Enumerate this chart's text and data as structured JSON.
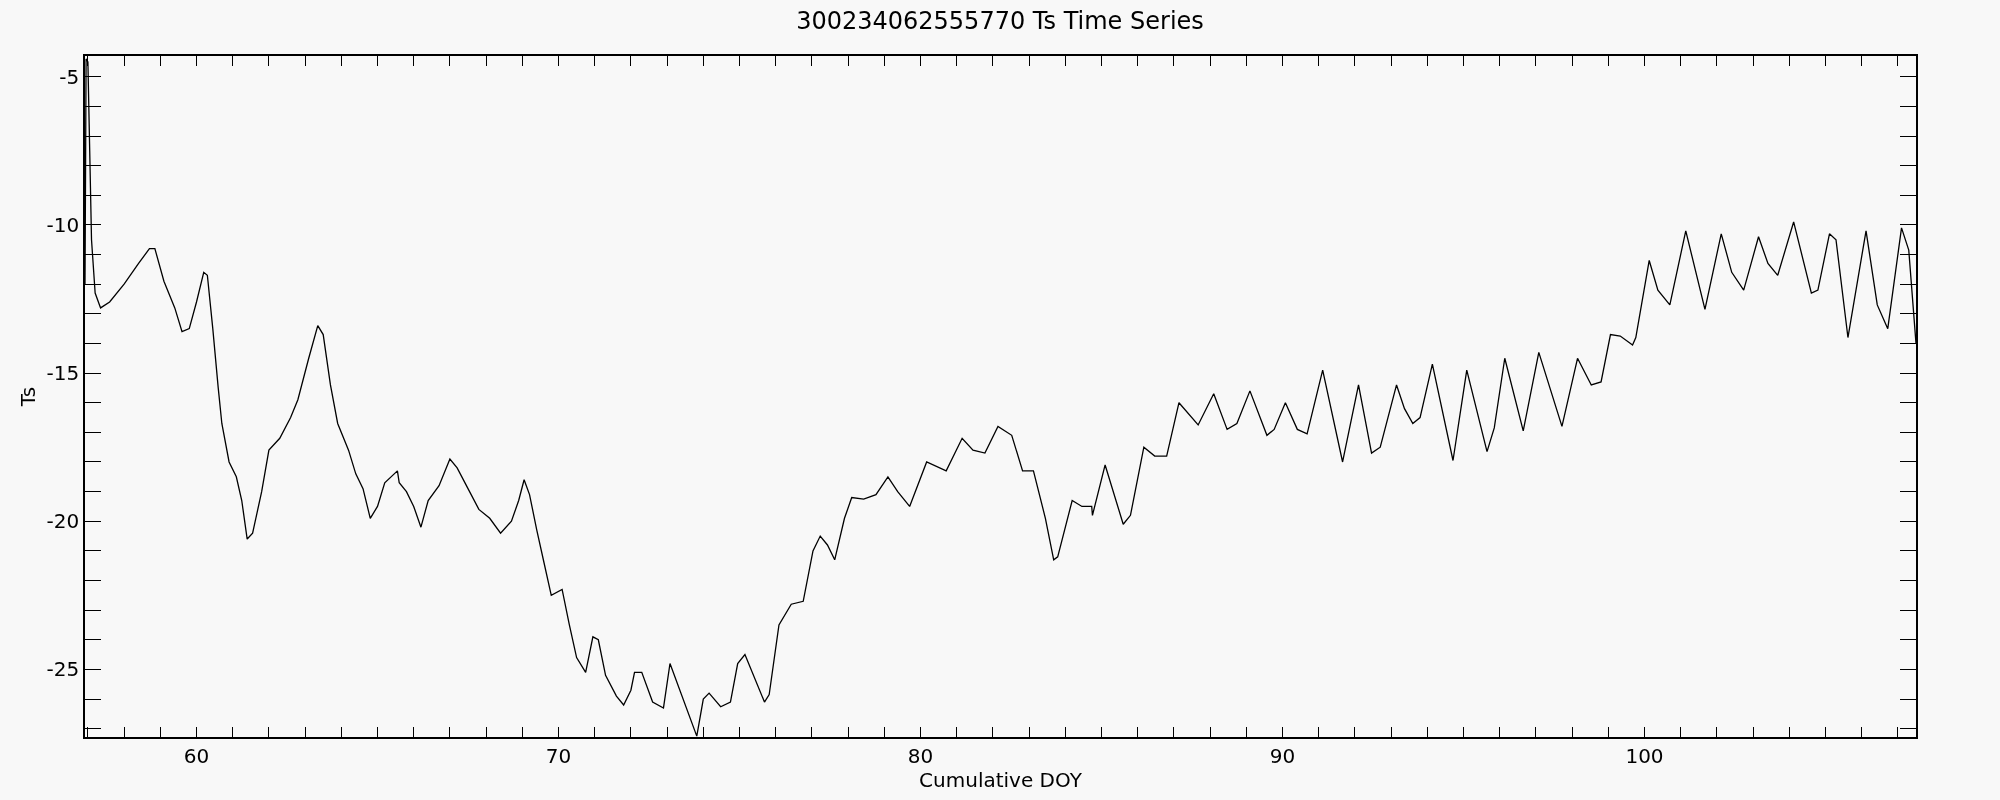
{
  "chart_data": {
    "type": "line",
    "title": "300234062555770 Ts Time Series",
    "xlabel": "Cumulative DOY",
    "ylabel": "Ts",
    "xlim": [
      56.92,
      107.5
    ],
    "ylim": [
      -27.28,
      -4.3
    ],
    "xticks": [
      {
        "value": 57,
        "label": null
      },
      {
        "value": 58,
        "label": null
      },
      {
        "value": 59,
        "label": null
      },
      60,
      {
        "value": 61,
        "label": null
      },
      {
        "value": 62,
        "label": null
      },
      {
        "value": 63,
        "label": null
      },
      {
        "value": 64,
        "label": null
      },
      {
        "value": 65,
        "label": null
      },
      {
        "value": 66,
        "label": null
      },
      {
        "value": 67,
        "label": null
      },
      {
        "value": 68,
        "label": null
      },
      {
        "value": 69,
        "label": null
      },
      70,
      {
        "value": 71,
        "label": null
      },
      {
        "value": 72,
        "label": null
      },
      {
        "value": 73,
        "label": null
      },
      {
        "value": 74,
        "label": null
      },
      {
        "value": 75,
        "label": null
      },
      {
        "value": 76,
        "label": null
      },
      {
        "value": 77,
        "label": null
      },
      {
        "value": 78,
        "label": null
      },
      {
        "value": 79,
        "label": null
      },
      80,
      {
        "value": 81,
        "label": null
      },
      {
        "value": 82,
        "label": null
      },
      {
        "value": 83,
        "label": null
      },
      {
        "value": 84,
        "label": null
      },
      {
        "value": 85,
        "label": null
      },
      {
        "value": 86,
        "label": null
      },
      {
        "value": 87,
        "label": null
      },
      {
        "value": 88,
        "label": null
      },
      {
        "value": 89,
        "label": null
      },
      90,
      {
        "value": 91,
        "label": null
      },
      {
        "value": 92,
        "label": null
      },
      {
        "value": 93,
        "label": null
      },
      {
        "value": 94,
        "label": null
      },
      {
        "value": 95,
        "label": null
      },
      {
        "value": 96,
        "label": null
      },
      {
        "value": 97,
        "label": null
      },
      {
        "value": 98,
        "label": null
      },
      {
        "value": 99,
        "label": null
      },
      100,
      {
        "value": 101,
        "label": null
      },
      {
        "value": 102,
        "label": null
      },
      {
        "value": 103,
        "label": null
      },
      {
        "value": 104,
        "label": null
      },
      {
        "value": 105,
        "label": null
      },
      {
        "value": 106,
        "label": null
      },
      {
        "value": 107,
        "label": null
      }
    ],
    "yticks": [
      {
        "value": -27,
        "label": null
      },
      {
        "value": -26,
        "label": null
      },
      -25,
      {
        "value": -24,
        "label": null
      },
      {
        "value": -23,
        "label": null
      },
      {
        "value": -22,
        "label": null
      },
      {
        "value": -21,
        "label": null
      },
      -20,
      {
        "value": -19,
        "label": null
      },
      {
        "value": -18,
        "label": null
      },
      {
        "value": -17,
        "label": null
      },
      {
        "value": -16,
        "label": null
      },
      -15,
      {
        "value": -14,
        "label": null
      },
      {
        "value": -13,
        "label": null
      },
      {
        "value": -12,
        "label": null
      },
      {
        "value": -11,
        "label": null
      },
      -10,
      {
        "value": -9,
        "label": null
      },
      {
        "value": -8,
        "label": null
      },
      {
        "value": -7,
        "label": null
      },
      {
        "value": -6,
        "label": null
      },
      -5
    ],
    "grid": false,
    "series": [
      {
        "color": "#000000",
        "x": [
          56.92,
          56.95,
          57.0,
          57.05,
          57.1,
          57.2,
          57.35,
          57.6,
          58.0,
          58.4,
          58.7,
          58.85,
          59.1,
          59.4,
          59.6,
          59.8,
          60.0,
          60.2,
          60.3,
          60.45,
          60.6,
          60.7,
          60.9,
          61.1,
          61.25,
          61.4,
          61.55,
          61.8,
          62.0,
          62.3,
          62.6,
          62.8,
          63.1,
          63.35,
          63.5,
          63.7,
          63.9,
          64.2,
          64.4,
          64.6,
          64.8,
          65.0,
          65.2,
          65.55,
          65.6,
          65.8,
          66.0,
          66.2,
          66.4,
          66.7,
          67.0,
          67.2,
          67.5,
          67.8,
          68.1,
          68.4,
          68.7,
          68.9,
          69.05,
          69.2,
          69.4,
          69.6,
          69.8,
          70.1,
          70.3,
          70.5,
          70.75,
          70.95,
          71.1,
          71.3,
          71.6,
          71.8,
          72.0,
          72.1,
          72.3,
          72.6,
          72.9,
          73.08,
          73.82,
          74.0,
          74.16,
          74.48,
          74.75,
          74.95,
          75.15,
          75.69,
          75.82,
          76.09,
          76.43,
          76.76,
          77.03,
          77.23,
          77.43,
          77.63,
          77.9,
          78.1,
          78.43,
          78.77,
          79.1,
          79.37,
          79.7,
          80.17,
          80.71,
          81.15,
          81.45,
          81.78,
          82.14,
          82.52,
          82.82,
          83.12,
          83.45,
          83.68,
          83.79,
          84.19,
          84.46,
          84.73,
          84.75,
          85.1,
          85.6,
          85.8,
          86.17,
          86.47,
          86.8,
          87.14,
          87.67,
          88.1,
          88.47,
          88.74,
          89.1,
          89.57,
          89.77,
          90.08,
          90.41,
          90.68,
          91.11,
          91.66,
          92.1,
          92.46,
          92.7,
          93.15,
          93.37,
          93.6,
          93.8,
          94.14,
          94.71,
          95.09,
          95.65,
          95.85,
          96.14,
          96.65,
          97.08,
          97.72,
          98.15,
          98.53,
          98.8,
          99.06,
          99.33,
          99.67,
          99.76,
          100.13,
          100.37,
          100.7,
          101.14,
          101.67,
          102.12,
          102.41,
          102.74,
          103.15,
          103.41,
          103.68,
          104.12,
          104.61,
          104.79,
          105.11,
          105.29,
          105.62,
          106.12,
          106.43,
          106.72,
          107.1,
          107.3,
          107.5
        ],
        "values": [
          -12.0,
          -4.4,
          -4.5,
          -7.5,
          -10.5,
          -12.3,
          -12.8,
          -12.6,
          -12.0,
          -11.3,
          -10.8,
          -10.8,
          -11.9,
          -12.8,
          -13.6,
          -13.5,
          -12.6,
          -11.6,
          -11.7,
          -13.5,
          -15.5,
          -16.7,
          -18.0,
          -18.5,
          -19.3,
          -20.6,
          -20.4,
          -19.0,
          -17.6,
          -17.2,
          -16.5,
          -15.9,
          -14.5,
          -13.4,
          -13.7,
          -15.4,
          -16.7,
          -17.6,
          -18.4,
          -18.9,
          -19.9,
          -19.5,
          -18.7,
          -18.3,
          -18.7,
          -19.0,
          -19.5,
          -20.2,
          -19.3,
          -18.8,
          -17.9,
          -18.2,
          -18.9,
          -19.6,
          -19.9,
          -20.4,
          -20.0,
          -19.3,
          -18.6,
          -19.1,
          -20.3,
          -21.4,
          -22.5,
          -22.3,
          -23.5,
          -24.6,
          -25.1,
          -23.9,
          -24.0,
          -25.2,
          -25.9,
          -26.2,
          -25.7,
          -25.1,
          -25.1,
          -26.1,
          -26.3,
          -24.8,
          -27.25,
          -26.0,
          -25.8,
          -26.26,
          -26.1,
          -24.8,
          -24.5,
          -26.1,
          -25.85,
          -23.5,
          -22.8,
          -22.7,
          -21.0,
          -20.5,
          -20.8,
          -21.3,
          -19.9,
          -19.2,
          -19.25,
          -19.1,
          -18.5,
          -19.0,
          -19.5,
          -18.0,
          -18.3,
          -17.2,
          -17.6,
          -17.7,
          -16.8,
          -17.1,
          -18.3,
          -18.3,
          -19.9,
          -21.3,
          -21.2,
          -19.3,
          -19.5,
          -19.5,
          -19.8,
          -18.1,
          -20.1,
          -19.8,
          -17.5,
          -17.8,
          -17.8,
          -16.0,
          -16.75,
          -15.7,
          -16.9,
          -16.7,
          -15.6,
          -17.1,
          -16.9,
          -16.0,
          -16.9,
          -17.05,
          -14.9,
          -18.0,
          -15.4,
          -17.7,
          -17.5,
          -15.4,
          -16.2,
          -16.7,
          -16.5,
          -14.7,
          -17.95,
          -14.9,
          -17.65,
          -16.85,
          -14.5,
          -16.95,
          -14.3,
          -16.8,
          -14.5,
          -15.4,
          -15.3,
          -13.7,
          -13.75,
          -14.05,
          -13.8,
          -11.2,
          -12.2,
          -12.7,
          -10.2,
          -12.85,
          -10.3,
          -11.6,
          -12.2,
          -10.4,
          -11.3,
          -11.7,
          -9.9,
          -12.3,
          -12.2,
          -10.3,
          -10.5,
          -13.8,
          -10.2,
          -12.7,
          -13.5,
          -10.1,
          -10.85,
          -14.0
        ]
      }
    ]
  }
}
